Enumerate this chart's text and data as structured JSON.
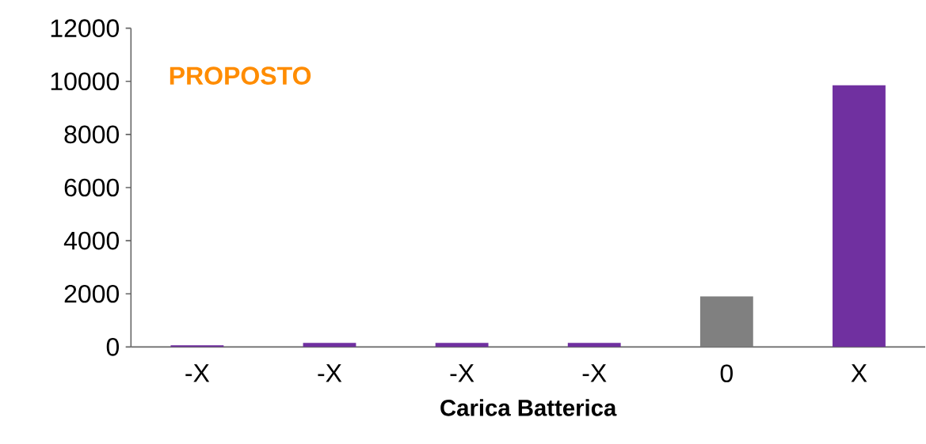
{
  "chart_data": {
    "type": "bar",
    "xlabel": "Carica Batterica",
    "annotations": [
      "PROPOSTO"
    ],
    "categories": [
      "-X",
      "-X",
      "-X",
      "-X",
      "0",
      "X"
    ],
    "values": [
      60,
      150,
      150,
      150,
      1900,
      9850
    ],
    "colors": [
      "#7030a0",
      "#7030a0",
      "#7030a0",
      "#7030a0",
      "#808080",
      "#7030a0"
    ],
    "ylim": [
      0,
      12000
    ],
    "yticks": [
      0,
      2000,
      4000,
      6000,
      8000,
      10000,
      12000
    ],
    "grid": false
  }
}
